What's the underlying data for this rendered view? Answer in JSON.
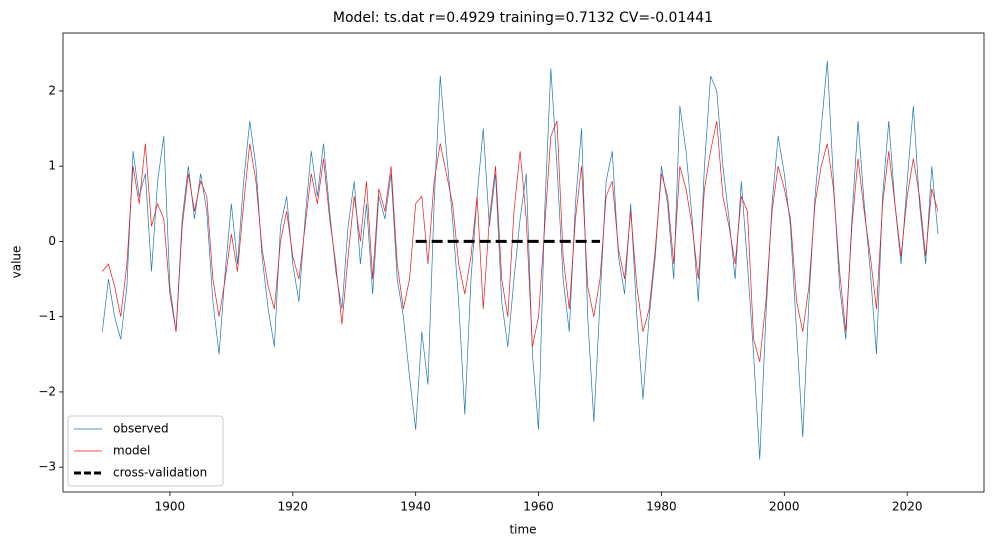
{
  "chart_data": {
    "type": "line",
    "title": "Model: ts.dat  r=0.4929  training=0.7132  CV=-0.01441",
    "xlabel": "time",
    "ylabel": "value",
    "x": [
      1889,
      1890,
      1891,
      1892,
      1893,
      1894,
      1895,
      1896,
      1897,
      1898,
      1899,
      1900,
      1901,
      1902,
      1903,
      1904,
      1905,
      1906,
      1907,
      1908,
      1909,
      1910,
      1911,
      1912,
      1913,
      1914,
      1915,
      1916,
      1917,
      1918,
      1919,
      1920,
      1921,
      1922,
      1923,
      1924,
      1925,
      1926,
      1927,
      1928,
      1929,
      1930,
      1931,
      1932,
      1933,
      1934,
      1935,
      1936,
      1937,
      1938,
      1939,
      1940,
      1941,
      1942,
      1943,
      1944,
      1945,
      1946,
      1947,
      1948,
      1949,
      1950,
      1951,
      1952,
      1953,
      1954,
      1955,
      1956,
      1957,
      1958,
      1959,
      1960,
      1961,
      1962,
      1963,
      1964,
      1965,
      1966,
      1967,
      1968,
      1969,
      1970,
      1971,
      1972,
      1973,
      1974,
      1975,
      1976,
      1977,
      1978,
      1979,
      1980,
      1981,
      1982,
      1983,
      1984,
      1985,
      1986,
      1987,
      1988,
      1989,
      1990,
      1991,
      1992,
      1993,
      1994,
      1995,
      1996,
      1997,
      1998,
      1999,
      2000,
      2001,
      2002,
      2003,
      2004,
      2005,
      2006,
      2007,
      2008,
      2009,
      2010,
      2011,
      2012,
      2013,
      2014,
      2015,
      2016,
      2017,
      2018,
      2019,
      2020,
      2021,
      2022,
      2023,
      2024,
      2025
    ],
    "series": [
      {
        "name": "observed",
        "color": "#1f77b4",
        "values": [
          -1.2,
          -0.5,
          -1.0,
          -1.3,
          -0.6,
          1.2,
          0.6,
          0.9,
          -0.4,
          0.8,
          1.4,
          -0.6,
          -1.2,
          0.3,
          1.0,
          0.3,
          0.9,
          0.4,
          -0.8,
          -1.5,
          -0.4,
          0.5,
          -0.3,
          0.8,
          1.6,
          1.0,
          -0.2,
          -0.9,
          -1.4,
          0.2,
          0.6,
          -0.3,
          -0.8,
          0.3,
          1.2,
          0.6,
          1.3,
          0.4,
          -0.4,
          -0.9,
          0.2,
          0.8,
          -0.3,
          0.5,
          -0.7,
          0.6,
          0.3,
          0.9,
          -0.5,
          -1.0,
          -1.8,
          -2.5,
          -1.2,
          -1.9,
          0.5,
          2.2,
          1.2,
          0.3,
          -0.8,
          -2.3,
          -0.5,
          0.6,
          1.5,
          0.2,
          0.9,
          -0.8,
          -1.4,
          -0.5,
          0.3,
          0.9,
          -1.5,
          -2.5,
          0.4,
          2.3,
          1.0,
          -0.5,
          -1.2,
          0.5,
          1.5,
          -1.0,
          -2.4,
          -0.8,
          0.8,
          1.2,
          -0.2,
          -0.7,
          0.5,
          -1.0,
          -2.1,
          -1.0,
          -0.2,
          1.0,
          0.5,
          -0.5,
          1.8,
          1.2,
          0.3,
          -0.8,
          1.0,
          2.2,
          2.0,
          1.0,
          0.3,
          -0.5,
          0.8,
          -0.3,
          -1.5,
          -2.9,
          -1.0,
          0.5,
          1.4,
          0.9,
          0.2,
          -1.2,
          -2.6,
          -0.8,
          0.6,
          1.5,
          2.4,
          0.8,
          -0.6,
          -1.3,
          0.3,
          1.6,
          0.5,
          -0.4,
          -1.5,
          0.6,
          1.6,
          0.5,
          -0.3,
          0.8,
          1.8,
          0.5,
          -0.3,
          1.0,
          0.1
        ]
      },
      {
        "name": "model",
        "color": "#e8191b",
        "values": [
          -0.4,
          -0.3,
          -0.6,
          -1.0,
          -0.3,
          1.0,
          0.5,
          1.3,
          0.2,
          0.5,
          0.3,
          -0.7,
          -1.2,
          0.2,
          0.9,
          0.4,
          0.8,
          0.6,
          -0.5,
          -1.0,
          -0.5,
          0.1,
          -0.4,
          0.5,
          1.3,
          0.8,
          -0.1,
          -0.6,
          -0.9,
          0.0,
          0.4,
          -0.2,
          -0.5,
          0.2,
          0.9,
          0.5,
          1.1,
          0.3,
          -0.3,
          -1.1,
          -0.2,
          0.6,
          0.0,
          0.8,
          -0.5,
          0.7,
          0.4,
          1.0,
          -0.3,
          -0.9,
          -0.5,
          0.5,
          0.6,
          -0.3,
          0.8,
          1.3,
          0.9,
          0.5,
          -0.3,
          -0.7,
          -0.2,
          0.6,
          -0.9,
          0.3,
          1.0,
          -0.5,
          -1.0,
          0.4,
          1.2,
          0.3,
          -1.4,
          -1.0,
          0.2,
          1.4,
          1.6,
          -0.2,
          -0.9,
          0.3,
          1.0,
          -0.6,
          -1.0,
          -0.5,
          0.6,
          0.8,
          -0.1,
          -0.5,
          0.4,
          -0.6,
          -1.2,
          -0.9,
          -0.1,
          0.9,
          0.6,
          -0.3,
          1.0,
          0.7,
          0.2,
          -0.5,
          0.7,
          1.2,
          1.6,
          0.6,
          0.2,
          -0.3,
          0.6,
          0.4,
          -1.3,
          -1.6,
          -0.8,
          0.4,
          1.0,
          0.7,
          0.3,
          -0.8,
          -1.2,
          -0.6,
          0.5,
          1.0,
          1.3,
          0.7,
          -0.4,
          -1.2,
          0.2,
          1.1,
          0.4,
          -0.2,
          -0.9,
          0.5,
          1.2,
          0.5,
          -0.2,
          0.6,
          1.1,
          0.6,
          -0.2,
          0.7,
          0.4
        ]
      },
      {
        "name": "cross-validation",
        "color": "#000000",
        "linestyle": "dashed",
        "x": [
          1940,
          1970
        ],
        "values": [
          0,
          0
        ]
      }
    ],
    "xlim": [
      1882.6,
      2032.5
    ],
    "xticks": [
      1900,
      1920,
      1940,
      1960,
      1980,
      2000,
      2020
    ],
    "ylim": [
      -3.33,
      2.77
    ],
    "yticks": [
      {
        "value": -3,
        "label": "−3"
      },
      {
        "value": -2,
        "label": "−2"
      },
      {
        "value": -1,
        "label": "−1"
      },
      0,
      1,
      2
    ],
    "legend": "lower left",
    "grid": false
  }
}
